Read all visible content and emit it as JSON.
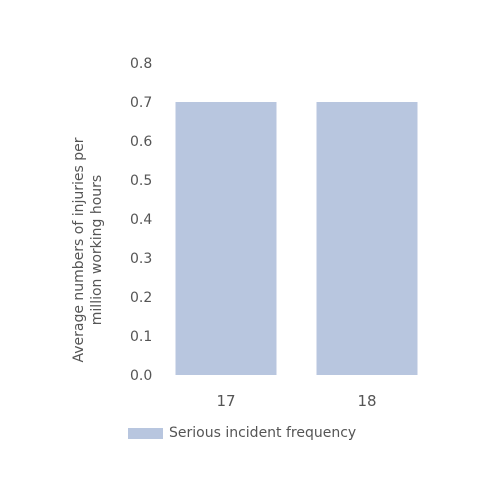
{
  "chart_data": {
    "type": "bar",
    "categories": [
      "17",
      "18"
    ],
    "series": [
      {
        "name": "Serious incident frequency",
        "values": [
          0.7,
          0.7
        ]
      }
    ],
    "ylabel_lines": [
      "Average numbers of injuries per",
      "million working hours"
    ],
    "xlabel": "",
    "title": "",
    "ylim": [
      0,
      0.8
    ],
    "yticks": [
      "0.0",
      "0.1",
      "0.2",
      "0.3",
      "0.4",
      "0.5",
      "0.6",
      "0.7",
      "0.8"
    ],
    "grid": false,
    "legend_position": "bottom-left",
    "colors": {
      "bar": "#b8c6df",
      "text": "#555555"
    }
  }
}
